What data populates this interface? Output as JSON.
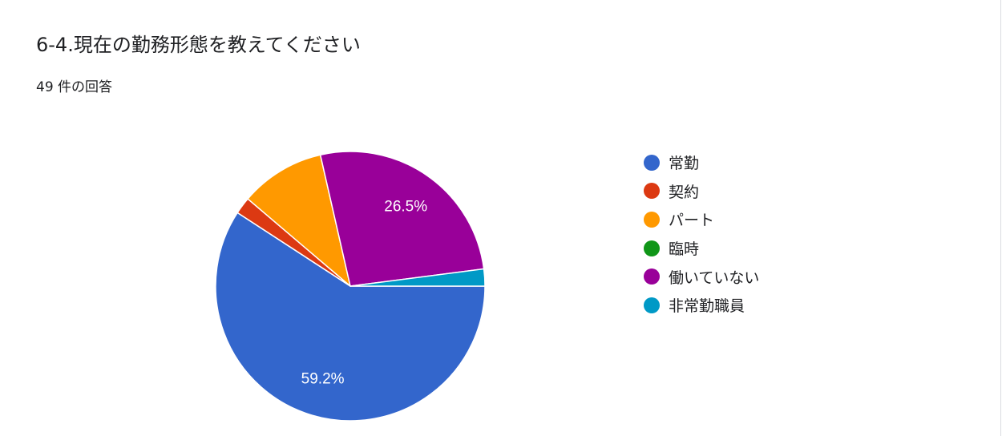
{
  "header": {
    "title": "6-4.現在の勤務形態を教えてください",
    "response_count": "49 件の回答"
  },
  "chart_data": {
    "type": "pie",
    "total_responses": 49,
    "categories": [
      "常勤",
      "契約",
      "パート",
      "臨時",
      "働いていない",
      "非常勤職員"
    ],
    "values": [
      29,
      1,
      5,
      0,
      13,
      1
    ],
    "percent": [
      59.2,
      2.0,
      10.2,
      0.0,
      26.5,
      2.0
    ],
    "colors": [
      "#3366cc",
      "#dc3912",
      "#ff9900",
      "#109618",
      "#990099",
      "#0099c6"
    ],
    "data_labels": [
      "59.2%",
      "",
      "",
      "",
      "26.5%",
      ""
    ],
    "label_color": "#ffffff",
    "legend_position": "right"
  }
}
